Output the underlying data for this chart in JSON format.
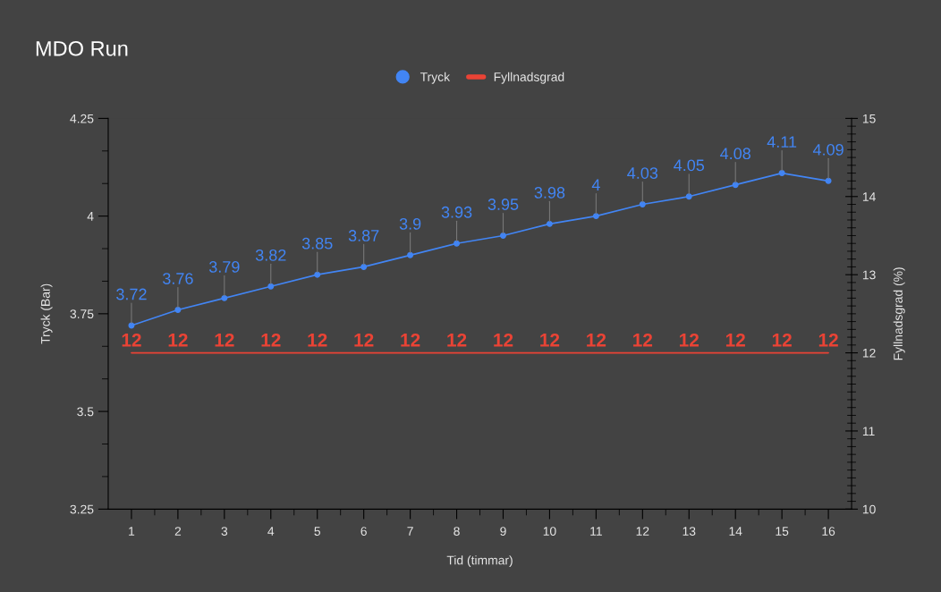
{
  "chart_data": {
    "type": "line",
    "title": "MDO Run",
    "xlabel": "Tid (timmar)",
    "ylabel": "Tryck (Bar)",
    "y2label": "Fyllnadsgrad (%)",
    "categories": [
      "1",
      "2",
      "3",
      "4",
      "5",
      "6",
      "7",
      "8",
      "9",
      "10",
      "11",
      "12",
      "13",
      "14",
      "15",
      "16"
    ],
    "series": [
      {
        "name": "Tryck",
        "color": "#4285f4",
        "values": [
          3.72,
          3.76,
          3.79,
          3.82,
          3.85,
          3.87,
          3.9,
          3.93,
          3.95,
          3.98,
          4,
          4.03,
          4.05,
          4.08,
          4.11,
          4.09
        ],
        "marker": "circle"
      },
      {
        "name": "Fyllnadsgrad",
        "color": "#ea4335",
        "axis": "y2",
        "values": [
          12,
          12,
          12,
          12,
          12,
          12,
          12,
          12,
          12,
          12,
          12,
          12,
          12,
          12,
          12,
          12
        ],
        "marker": "none"
      }
    ],
    "ylim": [
      3.25,
      4.25
    ],
    "yticks": [
      3.25,
      3.5,
      3.75,
      4,
      4.25
    ],
    "y2lim": [
      10,
      15
    ],
    "y2ticks": [
      10,
      11,
      12,
      13,
      14,
      15
    ],
    "data_labels": true,
    "grid": false,
    "legend": "top"
  }
}
